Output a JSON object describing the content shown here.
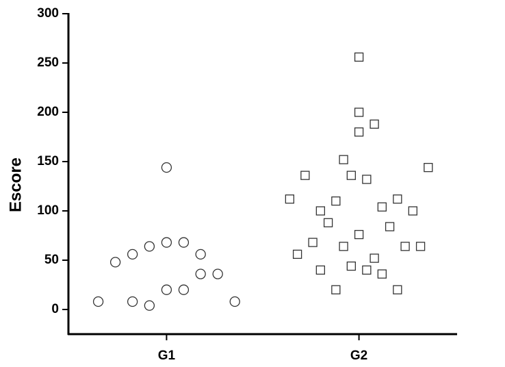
{
  "chart_data": {
    "type": "scatter",
    "y_label": "Escore",
    "xlim": [
      0.49,
      2.51
    ],
    "xticks": [
      {
        "value": 1,
        "label": "G1"
      },
      {
        "value": 2,
        "label": "G2"
      }
    ],
    "ylim": [
      -25,
      300
    ],
    "yticks": [
      0,
      50,
      100,
      150,
      200,
      250,
      300
    ],
    "series": [
      {
        "name": "G1",
        "marker": "circle",
        "color": "#333333",
        "x": [
          0.645,
          0.734,
          0.823,
          0.911,
          1.0,
          1.089,
          1.177,
          1.0,
          0.823,
          0.911,
          1.0,
          1.089,
          1.177,
          1.266,
          1.355
        ],
        "values": [
          8,
          48,
          56,
          64,
          68,
          68,
          56,
          144,
          8,
          4,
          20,
          20,
          36,
          36,
          8
        ]
      },
      {
        "name": "G2",
        "marker": "square",
        "color": "#333333",
        "x": [
          2.0,
          2.0,
          2.0,
          2.08,
          1.92,
          1.72,
          1.96,
          2.04,
          2.36,
          1.64,
          2.2,
          1.88,
          1.8,
          2.28,
          2.12,
          1.84,
          2.16,
          2.0,
          1.76,
          1.92,
          2.24,
          2.32,
          1.68,
          2.08,
          1.96,
          1.8,
          2.04,
          2.12,
          1.88,
          2.2
        ],
        "values": [
          256,
          200,
          180,
          188,
          152,
          136,
          136,
          132,
          144,
          112,
          112,
          110,
          100,
          100,
          104,
          88,
          84,
          76,
          68,
          64,
          64,
          64,
          56,
          52,
          44,
          40,
          40,
          36,
          20,
          20
        ]
      }
    ]
  }
}
